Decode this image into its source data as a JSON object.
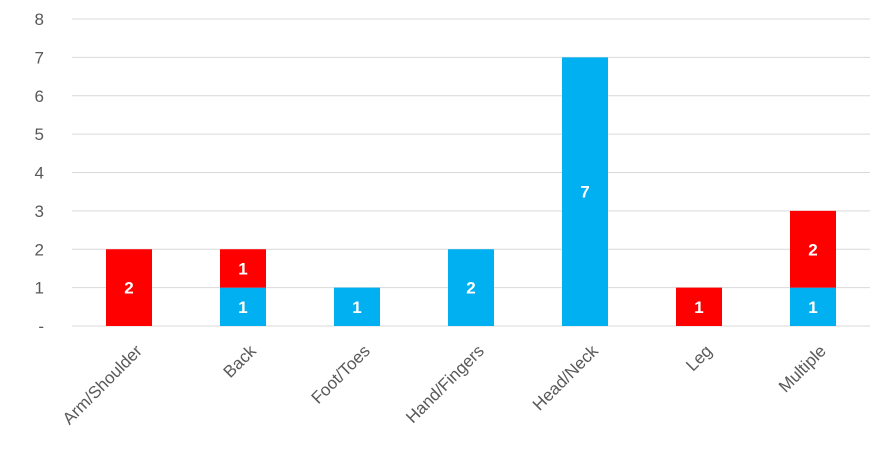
{
  "chart_data": {
    "type": "bar",
    "stacked": true,
    "categories": [
      "Arm/Shoulder",
      "Back",
      "Foot/Toes",
      "Hand/Fingers",
      "Head/Neck",
      "Leg",
      "Multiple"
    ],
    "series": [
      {
        "color": "#00b0f0",
        "values": [
          0,
          1,
          1,
          2,
          7,
          0,
          1
        ]
      },
      {
        "color": "#ff0000",
        "values": [
          2,
          1,
          0,
          0,
          0,
          1,
          2
        ]
      }
    ],
    "y_ticks": [
      "-",
      "1",
      "2",
      "3",
      "4",
      "5",
      "6",
      "7",
      "8"
    ],
    "ylim": [
      0,
      8
    ],
    "grid": true,
    "legend": "none",
    "title": "",
    "xlabel": "",
    "ylabel": ""
  }
}
